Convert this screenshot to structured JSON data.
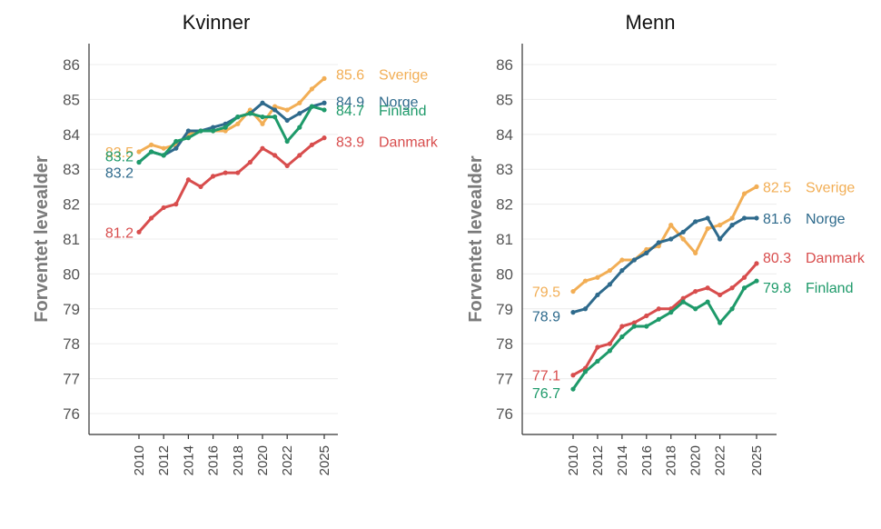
{
  "chart_data": [
    {
      "type": "line",
      "title": "Kvinner",
      "ylabel": "Forventet levealder",
      "xlabel": "",
      "ylim": [
        75.4,
        86.6
      ],
      "yticks": [
        76,
        77,
        78,
        79,
        80,
        81,
        82,
        83,
        84,
        85,
        86
      ],
      "xticks": [
        "2010",
        "2012",
        "2014",
        "2016",
        "2018",
        "2020",
        "2022",
        "2025"
      ],
      "x": [
        2010,
        2011,
        2012,
        2013,
        2014,
        2015,
        2016,
        2017,
        2018,
        2019,
        2020,
        2021,
        2022,
        2023,
        2024,
        2025
      ],
      "grid": "horizontal",
      "series": [
        {
          "name": "Sverige",
          "color": "#f2ae55",
          "values": [
            83.5,
            83.7,
            83.6,
            83.7,
            84.0,
            84.1,
            84.1,
            84.1,
            84.3,
            84.7,
            84.3,
            84.8,
            84.7,
            84.9,
            85.3,
            85.6
          ],
          "start_label": "83.5",
          "end_label": "85.6"
        },
        {
          "name": "Norge",
          "color": "#2e6a8c",
          "values": [
            83.2,
            83.5,
            83.4,
            83.6,
            84.1,
            84.1,
            84.2,
            84.3,
            84.5,
            84.6,
            84.9,
            84.7,
            84.4,
            84.6,
            84.8,
            84.9
          ],
          "start_label": "83.2",
          "end_label": "84.9"
        },
        {
          "name": "Finland",
          "color": "#1e9a6a",
          "values": [
            83.2,
            83.5,
            83.4,
            83.8,
            83.9,
            84.1,
            84.1,
            84.2,
            84.5,
            84.6,
            84.5,
            84.5,
            83.8,
            84.2,
            84.8,
            84.7
          ],
          "start_label": "83.2",
          "end_label": "84.7"
        },
        {
          "name": "Danmark",
          "color": "#d84d4d",
          "values": [
            81.2,
            81.6,
            81.9,
            82.0,
            82.7,
            82.5,
            82.8,
            82.9,
            82.9,
            83.2,
            83.6,
            83.4,
            83.1,
            83.4,
            83.7,
            83.9
          ],
          "start_label": "81.2",
          "end_label": "83.9"
        }
      ]
    },
    {
      "type": "line",
      "title": "Menn",
      "ylabel": "Forventet levealder",
      "xlabel": "",
      "ylim": [
        75.4,
        86.6
      ],
      "yticks": [
        76,
        77,
        78,
        79,
        80,
        81,
        82,
        83,
        84,
        85,
        86
      ],
      "xticks": [
        "2010",
        "2012",
        "2014",
        "2016",
        "2018",
        "2020",
        "2022",
        "2025"
      ],
      "x": [
        2010,
        2011,
        2012,
        2013,
        2014,
        2015,
        2016,
        2017,
        2018,
        2019,
        2020,
        2021,
        2022,
        2023,
        2024,
        2025
      ],
      "grid": "horizontal",
      "series": [
        {
          "name": "Sverige",
          "color": "#f2ae55",
          "values": [
            79.5,
            79.8,
            79.9,
            80.1,
            80.4,
            80.4,
            80.7,
            80.8,
            81.4,
            81.0,
            80.6,
            81.3,
            81.4,
            81.6,
            82.3,
            82.5
          ],
          "start_label": "79.5",
          "end_label": "82.5"
        },
        {
          "name": "Norge",
          "color": "#2e6a8c",
          "values": [
            78.9,
            79.0,
            79.4,
            79.7,
            80.1,
            80.4,
            80.6,
            80.9,
            81.0,
            81.2,
            81.5,
            81.6,
            81.0,
            81.4,
            81.6,
            81.6
          ],
          "start_label": "78.9",
          "end_label": "81.6"
        },
        {
          "name": "Danmark",
          "color": "#d84d4d",
          "values": [
            77.1,
            77.3,
            77.9,
            78.0,
            78.5,
            78.6,
            78.8,
            79.0,
            79.0,
            79.3,
            79.5,
            79.6,
            79.4,
            79.6,
            79.9,
            80.3
          ],
          "start_label": "77.1",
          "end_label": "80.3"
        },
        {
          "name": "Finland",
          "color": "#1e9a6a",
          "values": [
            76.7,
            77.2,
            77.5,
            77.8,
            78.2,
            78.5,
            78.5,
            78.7,
            78.9,
            79.2,
            79.0,
            79.2,
            78.6,
            79.0,
            79.6,
            79.8
          ],
          "start_label": "76.7",
          "end_label": "79.8"
        }
      ]
    }
  ]
}
